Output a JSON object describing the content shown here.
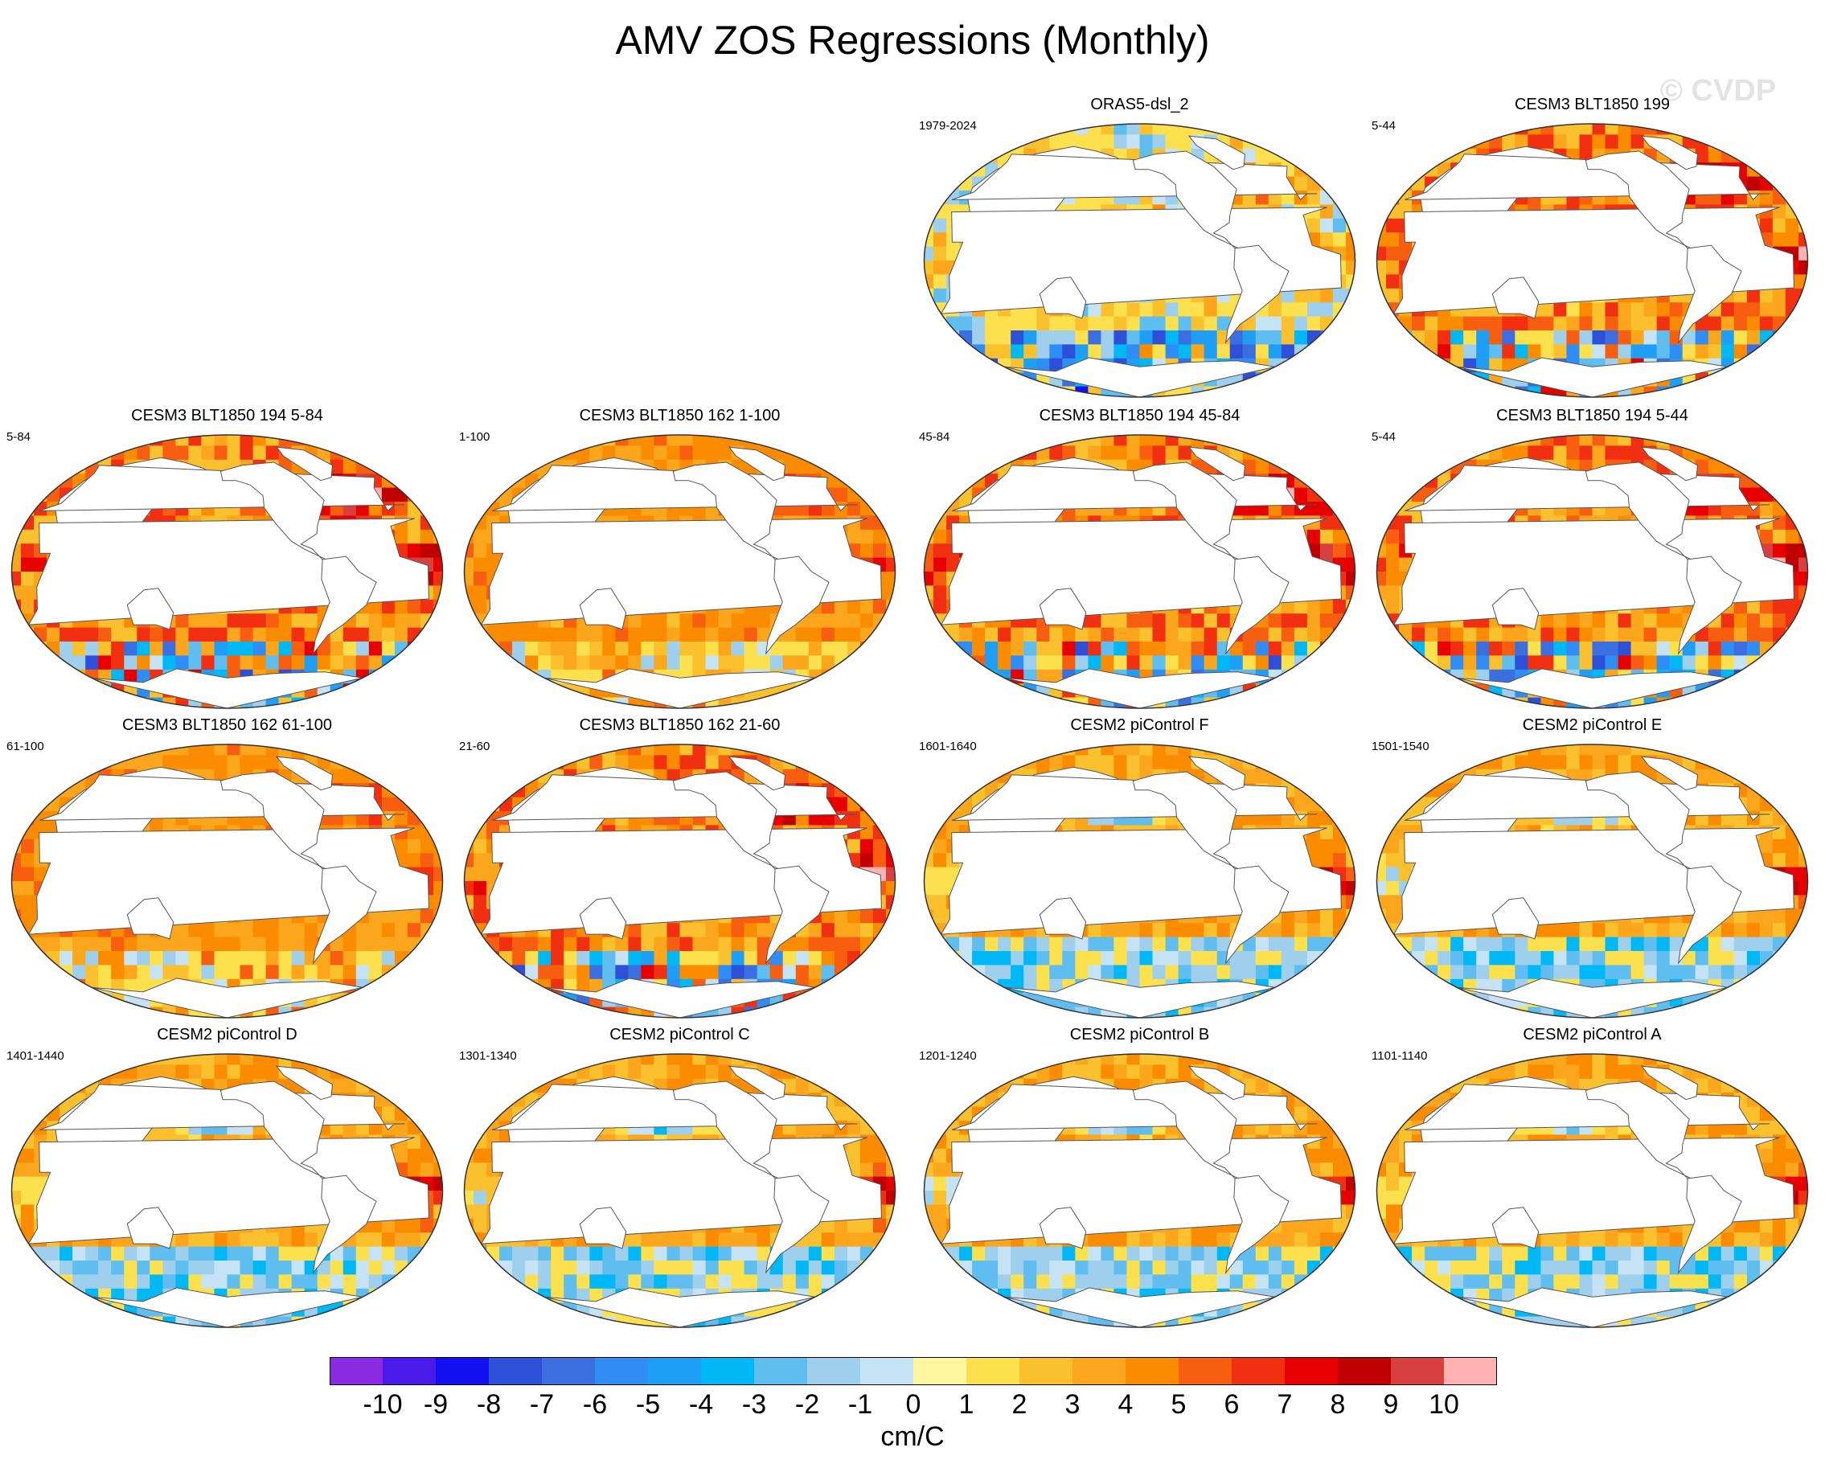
{
  "figure": {
    "title": "AMV ZOS Regressions (Monthly)",
    "watermark": "© CVDP"
  },
  "panels": [
    {
      "title": "ORAS5-dsl_2",
      "years": "1979-2024",
      "pattern": "obs"
    },
    {
      "title": "CESM3 BLT1850 199",
      "years": "5-44",
      "pattern": "warm"
    },
    {
      "title": "CESM3 BLT1850 194 5-84",
      "years": "5-84",
      "pattern": "warm"
    },
    {
      "title": "CESM3 BLT1850 162 1-100",
      "years": "1-100",
      "pattern": "weak"
    },
    {
      "title": "CESM3 BLT1850 194 45-84",
      "years": "45-84",
      "pattern": "warm"
    },
    {
      "title": "CESM3 BLT1850 194 5-44",
      "years": "5-44",
      "pattern": "warm"
    },
    {
      "title": "CESM3 BLT1850 162 61-100",
      "years": "61-100",
      "pattern": "weak"
    },
    {
      "title": "CESM3 BLT1850 162 21-60",
      "years": "21-60",
      "pattern": "warm"
    },
    {
      "title": "CESM2 piControl F",
      "years": "1601-1640",
      "pattern": "enso"
    },
    {
      "title": "CESM2 piControl E",
      "years": "1501-1540",
      "pattern": "enso"
    },
    {
      "title": "CESM2 piControl D",
      "years": "1401-1440",
      "pattern": "enso"
    },
    {
      "title": "CESM2 piControl C",
      "years": "1301-1340",
      "pattern": "enso"
    },
    {
      "title": "CESM2 piControl B",
      "years": "1201-1240",
      "pattern": "enso"
    },
    {
      "title": "CESM2 piControl A",
      "years": "1101-1140",
      "pattern": "enso"
    }
  ],
  "colorbar": {
    "units": "cm/C",
    "tick_labels": [
      "-10",
      "-9",
      "-8",
      "-7",
      "-6",
      "-5",
      "-4",
      "-3",
      "-2",
      "-1",
      "0",
      "1",
      "2",
      "3",
      "4",
      "5",
      "6",
      "7",
      "8",
      "9",
      "10"
    ],
    "colors": [
      "#8a2be2",
      "#4a1aea",
      "#1010f0",
      "#2e4fd8",
      "#3b6fe0",
      "#2f8df5",
      "#1e9ff5",
      "#00b8f5",
      "#5fbdf0",
      "#9ed0ee",
      "#c6e3f5",
      "#fff6a0",
      "#fde04d",
      "#fbc02d",
      "#fba61c",
      "#fb8c00",
      "#f85e10",
      "#f03010",
      "#e60000",
      "#c00000",
      "#d84040",
      "#ffb2b2"
    ]
  },
  "map_colors": {
    "land": "#ffffff",
    "coast": "#555555",
    "outline": "#333333"
  }
}
